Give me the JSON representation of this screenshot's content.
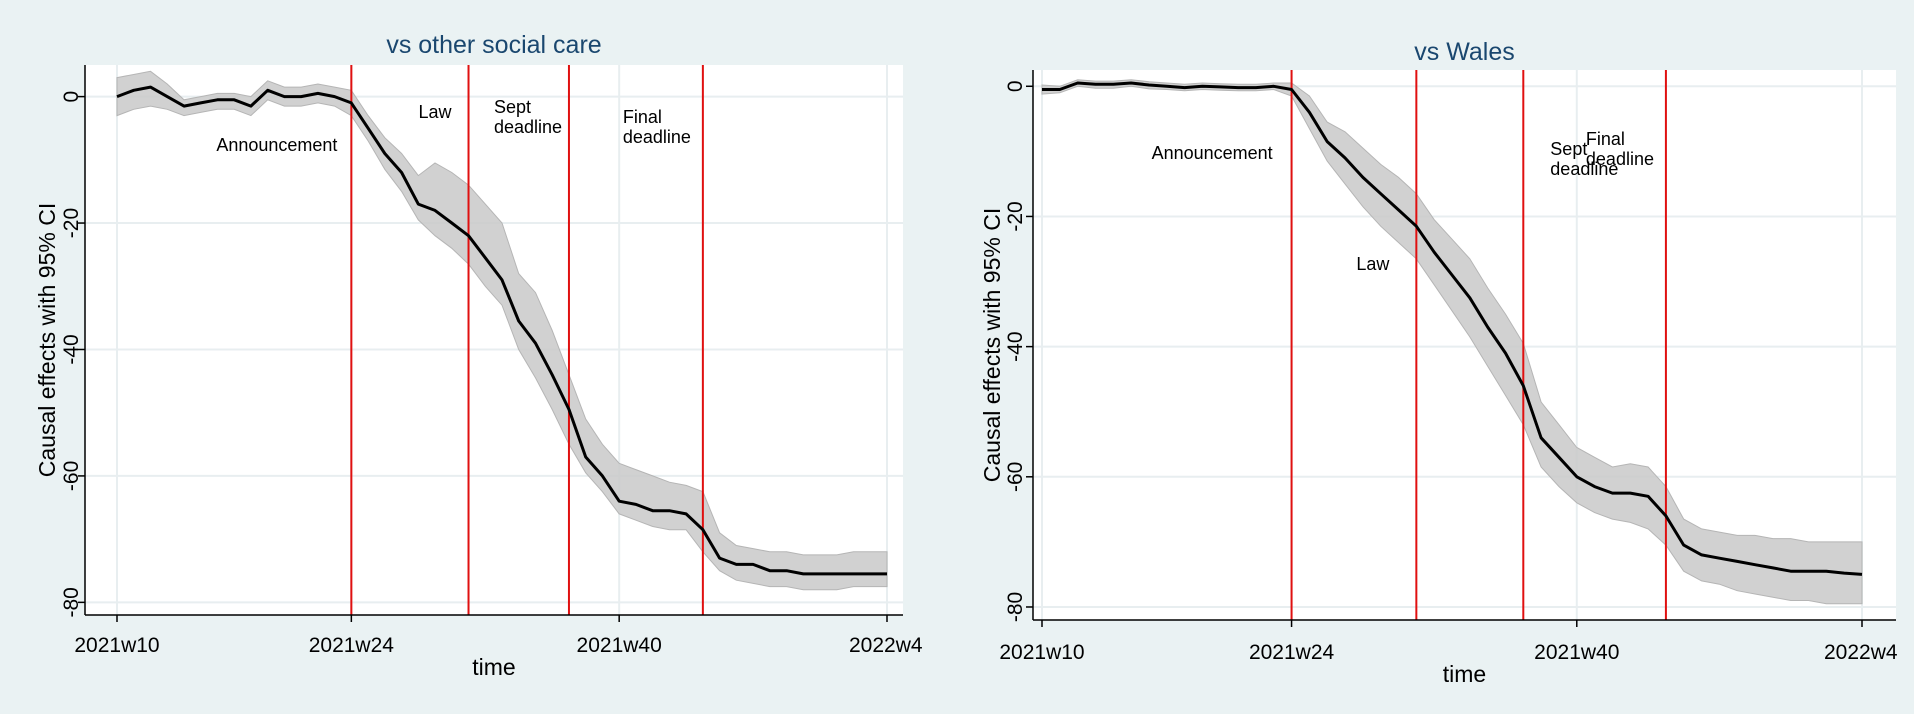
{
  "chart_data": [
    {
      "type": "line",
      "title": "vs other social care",
      "xlabel": "time",
      "ylabel": "Causal effects with 95% CI",
      "ylim": [
        -82,
        5
      ],
      "yticks": [
        0,
        -20,
        -40,
        -60,
        -80
      ],
      "x_tick_labels": [
        "2021w10",
        "2021w24",
        "2021w40",
        "2022w4"
      ],
      "x_start_week": "2021w10",
      "vlines": [
        {
          "week": "2021w24",
          "label": [
            "Announcement"
          ]
        },
        {
          "week": "2021w31",
          "label": [
            "Law"
          ]
        },
        {
          "week": "2021w37",
          "label": [
            "Sept",
            "deadline"
          ]
        },
        {
          "week": "2021w45",
          "label": [
            "Final",
            "deadline"
          ]
        }
      ],
      "series": [
        {
          "name": "Causal effect",
          "values": [
            0,
            1,
            1.5,
            0,
            -1.5,
            -1,
            -0.5,
            -0.5,
            -1.5,
            1,
            0,
            0,
            0.5,
            0,
            -1,
            -5,
            -9,
            -12,
            -17,
            -18,
            -20,
            -22,
            -25.5,
            -29,
            -35.5,
            -39,
            -44,
            -49.5,
            -57,
            -60,
            -64,
            -64.5,
            -65.5,
            -65.5,
            -66,
            -68.5,
            -73,
            -74,
            -74,
            -75,
            -75,
            -75.5,
            -75.5,
            -75.5,
            -75.5,
            -75.5,
            -75.5
          ],
          "ci_lower": [
            -3,
            -2,
            -1.5,
            -2,
            -3,
            -2.5,
            -2,
            -2,
            -3,
            -0.5,
            -1.5,
            -1.5,
            -1,
            -1.5,
            -3,
            -7,
            -11.5,
            -15,
            -19.5,
            -22,
            -24,
            -26.5,
            -30,
            -33,
            -40,
            -44.5,
            -49.5,
            -55,
            -59.5,
            -62.5,
            -66,
            -67,
            -68,
            -68.5,
            -68.5,
            -72,
            -75,
            -76.5,
            -77,
            -77.5,
            -77.5,
            -78,
            -78,
            -78,
            -77.5,
            -77.5,
            -77.5
          ],
          "ci_upper": [
            3,
            3.5,
            4,
            2,
            -0.5,
            0,
            0.5,
            0.5,
            0,
            2.5,
            1.5,
            1.5,
            2,
            1.5,
            1,
            -3,
            -6.5,
            -9,
            -12.5,
            -10.5,
            -12,
            -14,
            -17,
            -20,
            -28,
            -31,
            -37,
            -44,
            -51,
            -55,
            -58,
            -59,
            -60,
            -61,
            -61.5,
            -62.5,
            -69,
            -71,
            -71.5,
            -72,
            -72,
            -72.5,
            -72.5,
            -72.5,
            -72,
            -72,
            -72
          ]
        }
      ]
    },
    {
      "type": "line",
      "title": "vs Wales",
      "xlabel": "time",
      "ylabel": "Causal effects with 95% CI",
      "ylim": [
        -82,
        2.5
      ],
      "yticks": [
        0,
        -20,
        -40,
        -60,
        -80
      ],
      "x_tick_labels": [
        "2021w10",
        "2021w24",
        "2021w40",
        "2022w4"
      ],
      "x_start_week": "2021w10",
      "vlines": [
        {
          "week": "2021w24",
          "label": [
            "Announcement"
          ]
        },
        {
          "week": "2021w31",
          "label": [
            "Law"
          ]
        },
        {
          "week": "2021w37",
          "label": [
            "Sept",
            "deadline"
          ]
        },
        {
          "week": "2021w45",
          "label": [
            "Final",
            "deadline"
          ]
        }
      ],
      "series": [
        {
          "name": "Causal effect",
          "values": [
            -0.5,
            -0.5,
            0.5,
            0.3,
            0.3,
            0.5,
            0.2,
            0,
            -0.2,
            0,
            -0.1,
            -0.2,
            -0.2,
            0,
            -0.5,
            -4,
            -8.5,
            -11,
            -14,
            -16.5,
            -19,
            -21.5,
            -25.5,
            -29,
            -32.5,
            -37,
            -41,
            -46,
            -54,
            -57,
            -60,
            -61.5,
            -62.5,
            -62.5,
            -63,
            -66,
            -70.5,
            -72,
            -72.5,
            -73,
            -73.5,
            -74,
            -74.5,
            -74.5,
            -74.5,
            -74.8,
            -75
          ],
          "ci_lower": [
            -1.2,
            -1,
            0,
            -0.3,
            -0.3,
            0,
            -0.4,
            -0.5,
            -0.7,
            -0.5,
            -0.6,
            -0.7,
            -0.7,
            -0.5,
            -1.5,
            -6.5,
            -11.5,
            -15,
            -18.5,
            -21.5,
            -24,
            -26.5,
            -30.5,
            -34.5,
            -38.5,
            -43,
            -47.5,
            -52,
            -58.5,
            -61.5,
            -64,
            -65.5,
            -66.5,
            -67,
            -68,
            -70.5,
            -74.5,
            -76,
            -76.5,
            -77.5,
            -78,
            -78.5,
            -79,
            -79,
            -79.5,
            -79.5,
            -79.5
          ],
          "ci_upper": [
            0.2,
            0,
            1,
            0.8,
            0.8,
            1,
            0.7,
            0.5,
            0.3,
            0.5,
            0.4,
            0.3,
            0.3,
            0.5,
            0.5,
            -1.5,
            -5.5,
            -7,
            -9.5,
            -12,
            -14,
            -16.5,
            -20.5,
            -23.5,
            -26.5,
            -31,
            -35,
            -39.5,
            -48.5,
            -52,
            -55.5,
            -57,
            -58.5,
            -58,
            -58.5,
            -61.5,
            -66.5,
            -68,
            -68.5,
            -69,
            -69,
            -69.5,
            -69.5,
            -70,
            -70,
            -70,
            -70
          ]
        }
      ]
    }
  ]
}
